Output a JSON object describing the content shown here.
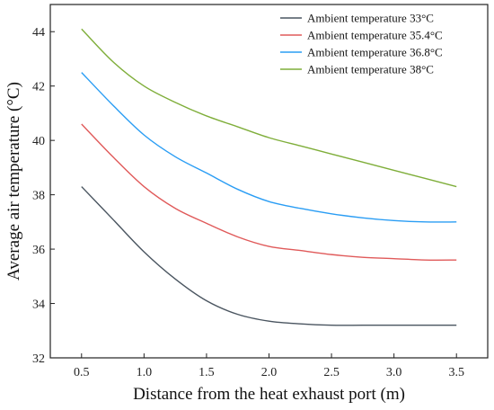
{
  "chart_data": {
    "type": "line",
    "xlabel": "Distance from the heat exhaust port (m)",
    "ylabel": "Average air temperature (°C)",
    "xlim": [
      0.25,
      3.75
    ],
    "ylim": [
      32,
      45
    ],
    "xticks": [
      0.5,
      1.0,
      1.5,
      2.0,
      2.5,
      3.0,
      3.5
    ],
    "xtick_labels": [
      "0.5",
      "1.0",
      "1.5",
      "2.0",
      "2.5",
      "3.0",
      "3.5"
    ],
    "yticks": [
      32,
      34,
      36,
      38,
      40,
      42,
      44
    ],
    "ytick_labels": [
      "32",
      "34",
      "36",
      "38",
      "40",
      "42",
      "44"
    ],
    "grid": false,
    "legend_position": "top-right",
    "x": [
      0.5,
      0.75,
      1.0,
      1.25,
      1.5,
      1.75,
      2.0,
      2.25,
      2.5,
      2.75,
      3.0,
      3.25,
      3.5
    ],
    "series": [
      {
        "name": "Ambient temperature 33°C",
        "color": "#4a5560",
        "values": [
          38.3,
          37.1,
          35.9,
          34.9,
          34.1,
          33.6,
          33.35,
          33.25,
          33.2,
          33.2,
          33.2,
          33.2,
          33.2
        ]
      },
      {
        "name": "Ambient temperature 35.4°C",
        "color": "#e05a5a",
        "values": [
          40.6,
          39.4,
          38.3,
          37.5,
          36.95,
          36.45,
          36.1,
          35.95,
          35.8,
          35.7,
          35.65,
          35.6,
          35.6
        ]
      },
      {
        "name": "Ambient temperature 36.8°C",
        "color": "#2a9df4",
        "values": [
          42.5,
          41.3,
          40.2,
          39.4,
          38.8,
          38.2,
          37.75,
          37.5,
          37.3,
          37.15,
          37.05,
          37.0,
          37.0
        ]
      },
      {
        "name": "Ambient temperature 38°C",
        "color": "#7fae3a",
        "values": [
          44.1,
          42.9,
          42.0,
          41.4,
          40.9,
          40.5,
          40.1,
          39.8,
          39.5,
          39.2,
          38.9,
          38.6,
          38.3
        ]
      }
    ]
  }
}
